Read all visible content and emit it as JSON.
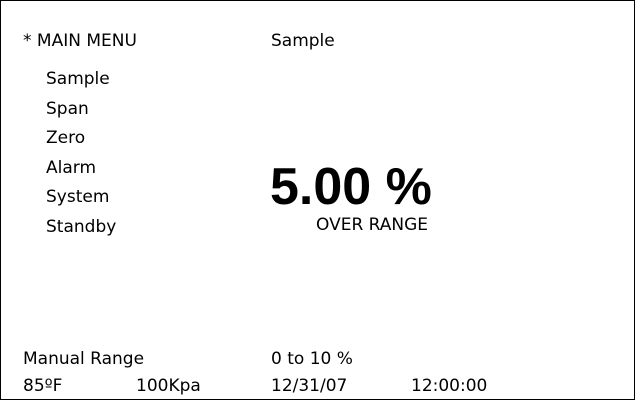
{
  "header": {
    "title": "* MAIN MENU",
    "mode": "Sample"
  },
  "menu": {
    "items": [
      "Sample",
      "Span",
      "Zero",
      "Alarm",
      "System",
      "Standby"
    ]
  },
  "reading": {
    "value": "5.00 %",
    "status": "OVER RANGE"
  },
  "footer": {
    "range_label": "Manual Range",
    "range": "0 to 10 %",
    "temperature": "85ºF",
    "pressure": "100Kpa",
    "date": "12/31/07",
    "time": "12:00:00"
  }
}
